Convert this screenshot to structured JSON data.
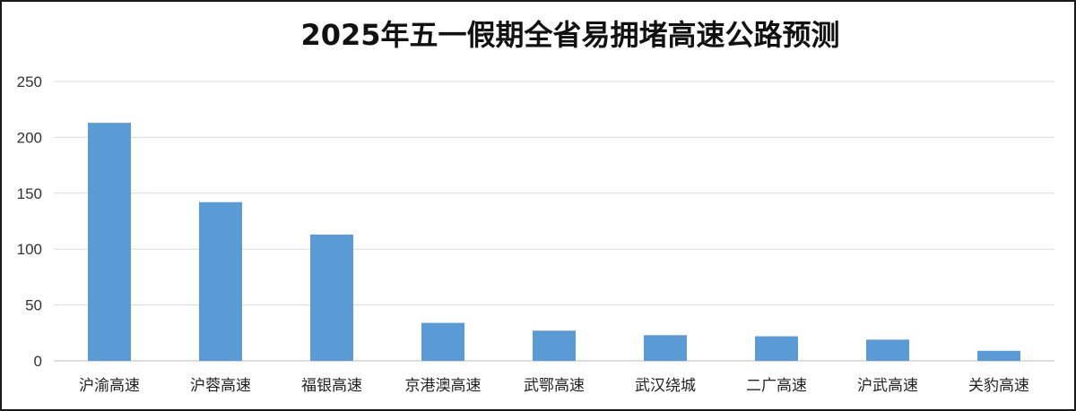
{
  "chart_data": {
    "type": "bar",
    "title": "2025年五一假期全省易拥堵高速公路预测",
    "xlabel": "",
    "ylabel": "",
    "categories": [
      "沪渝高速",
      "沪蓉高速",
      "福银高速",
      "京港澳高速",
      "武鄂高速",
      "武汉绕城",
      "二广高速",
      "沪武高速",
      "关豹高速"
    ],
    "values": [
      213,
      142,
      113,
      34,
      27,
      23,
      22,
      19,
      9
    ],
    "ylim": [
      0,
      250
    ],
    "yticks": [
      0,
      50,
      100,
      150,
      200,
      250
    ],
    "grid": true,
    "legend": "none",
    "colors": {
      "bar": "#5b9bd5",
      "grid": "#d9d9d9",
      "axis": "#bfbfbf"
    }
  }
}
